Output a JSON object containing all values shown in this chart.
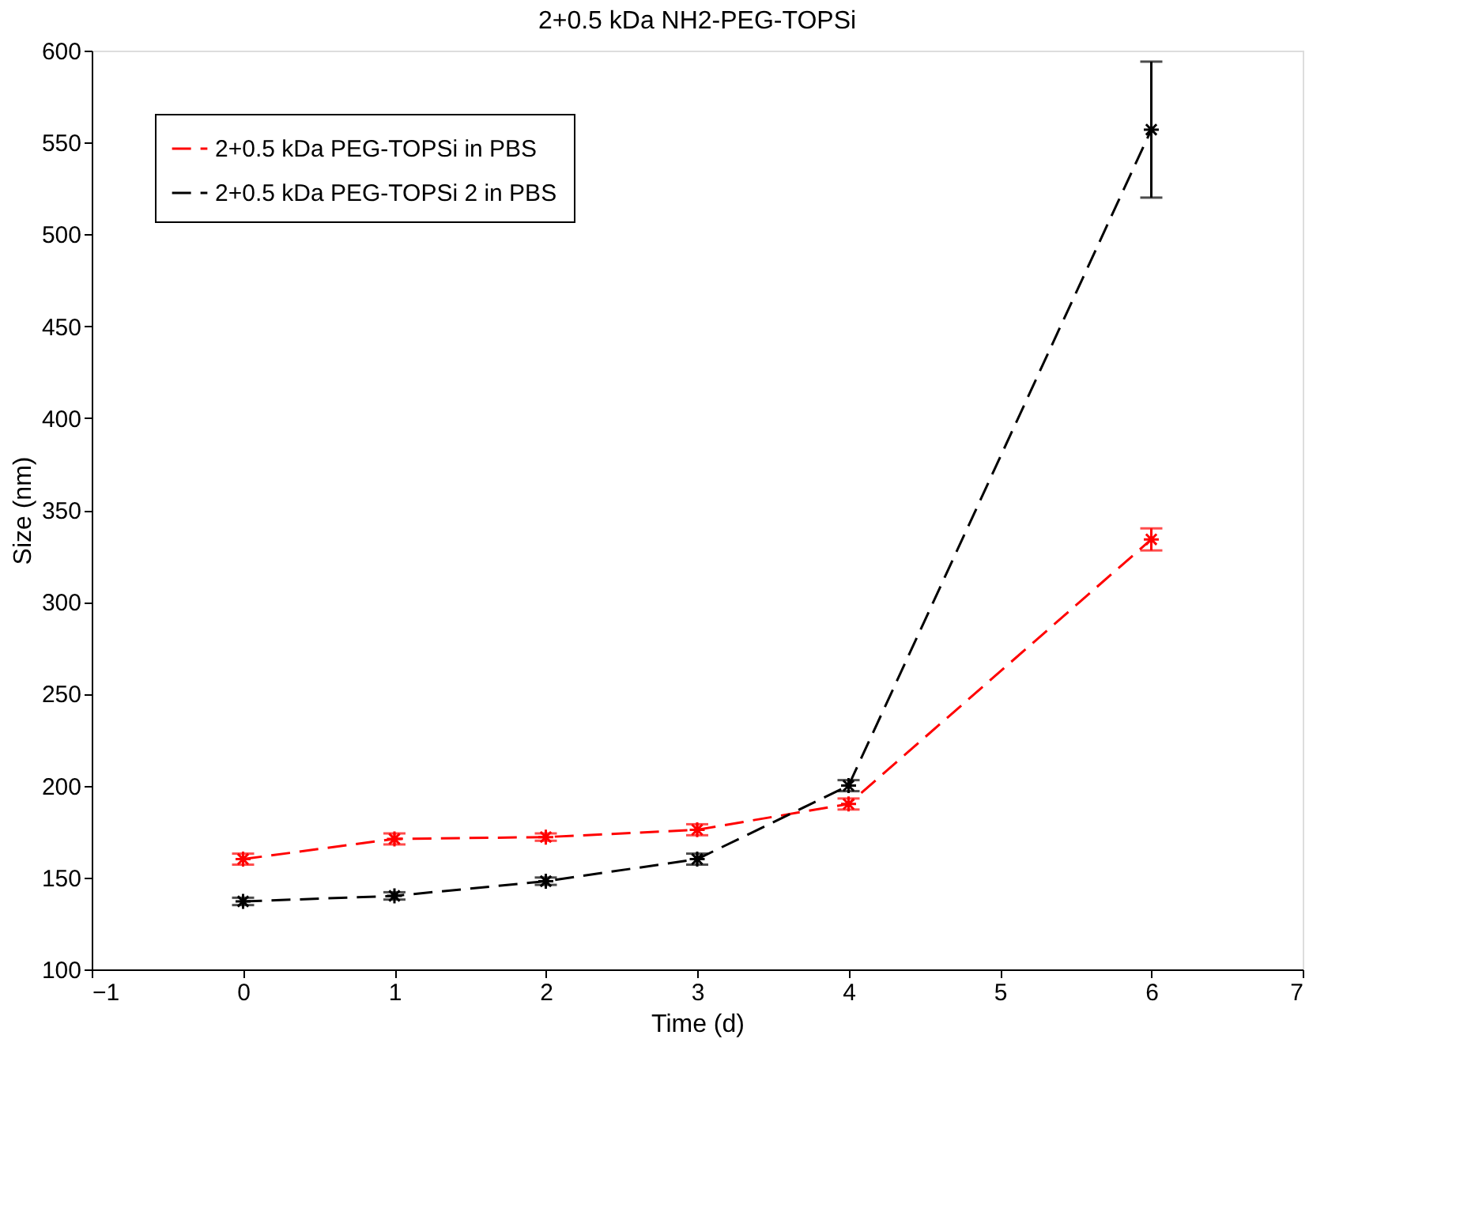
{
  "chart_data": {
    "type": "line",
    "title": "2+0.5 kDa NH2-PEG-TOPSi",
    "xlabel": "Time (d)",
    "ylabel": "Size (nm)",
    "x": [
      0,
      1,
      2,
      3,
      4,
      6
    ],
    "series": [
      {
        "name": "2+0.5 kDa PEG-TOPSi in PBS",
        "color": "#ff0000",
        "values": [
          160,
          171,
          172,
          176,
          190,
          334
        ],
        "errors": [
          3,
          3,
          2,
          3,
          3,
          6
        ]
      },
      {
        "name": "2+0.5 kDa PEG-TOPSi 2 in PBS",
        "color": "#000000",
        "values": [
          137,
          140,
          148,
          160,
          200,
          557
        ],
        "errors": [
          2,
          2,
          2,
          3,
          3,
          37
        ]
      }
    ],
    "xlim": [
      -1,
      7
    ],
    "xticks": [
      -1,
      0,
      1,
      2,
      3,
      4,
      5,
      6,
      7
    ],
    "ylim": [
      100,
      600
    ],
    "yticks": [
      100,
      150,
      200,
      250,
      300,
      350,
      400,
      450,
      500,
      550,
      600
    ],
    "grid": false,
    "legend": "top left",
    "marker": "cross",
    "line_style": "dashed"
  }
}
